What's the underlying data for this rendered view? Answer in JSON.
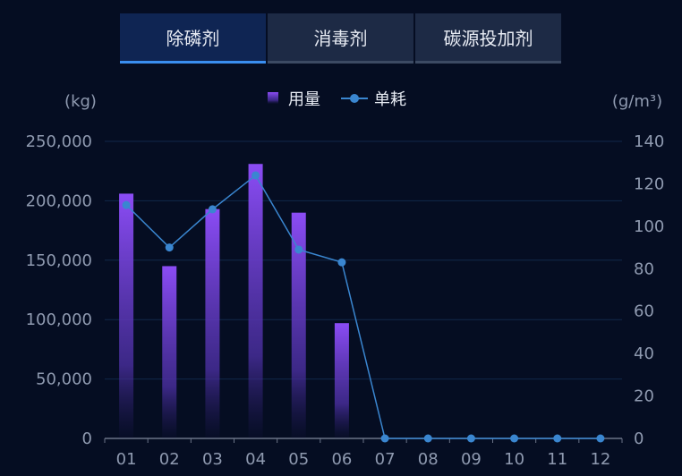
{
  "tabs": [
    {
      "label": "除磷剂",
      "active": true
    },
    {
      "label": "消毒剂",
      "active": false
    },
    {
      "label": "碳源投加剂",
      "active": false
    }
  ],
  "colors": {
    "bar_top": "#8b4cf5",
    "bar_bottom": "#3a2a8a",
    "line": "#3a86d0",
    "grid": "#11284a",
    "active_tab_underline": "#3a8ef0"
  },
  "chart_data": {
    "type": "bar+line",
    "categories": [
      "01",
      "02",
      "03",
      "04",
      "05",
      "06",
      "07",
      "08",
      "09",
      "10",
      "11",
      "12"
    ],
    "series": [
      {
        "name": "用量",
        "type": "bar",
        "axis": "left",
        "values": [
          206000,
          145000,
          193000,
          231000,
          190000,
          97000,
          0,
          0,
          0,
          0,
          0,
          0
        ]
      },
      {
        "name": "单耗",
        "type": "line",
        "axis": "right",
        "values": [
          110,
          90,
          108,
          124,
          89,
          83,
          0,
          0,
          0,
          0,
          0,
          0
        ]
      }
    ],
    "left_axis": {
      "unit": "(kg)",
      "ylim": [
        0,
        250000
      ],
      "ticks": [
        "0",
        "50,000",
        "100,000",
        "150,000",
        "200,000",
        "250,000"
      ]
    },
    "right_axis": {
      "unit": "(g/m³)",
      "ylim": [
        0,
        140
      ],
      "ticks": [
        "0",
        "20",
        "40",
        "60",
        "80",
        "100",
        "120",
        "140"
      ]
    },
    "legend_position": "top-center",
    "grid": true
  }
}
